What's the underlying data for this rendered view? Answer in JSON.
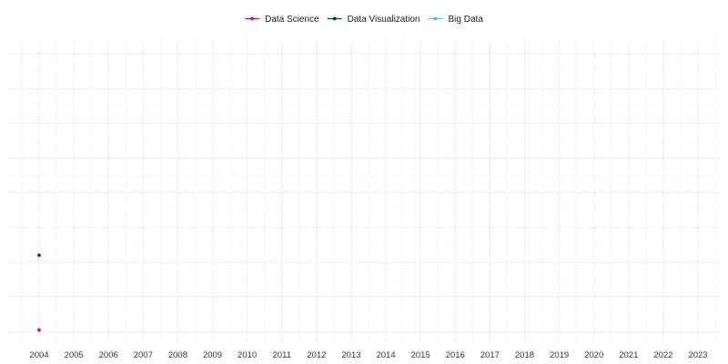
{
  "chart_data": {
    "type": "line",
    "title": "",
    "xlabel": "",
    "ylabel": "",
    "x": [
      "2004",
      "2005",
      "2006",
      "2007",
      "2008",
      "2009",
      "2010",
      "2011",
      "2012",
      "2013",
      "2014",
      "2015",
      "2016",
      "2017",
      "2018",
      "2019",
      "2020",
      "2021",
      "2022",
      "2023"
    ],
    "ylim": [
      0,
      8
    ],
    "grid": true,
    "legend_position": "top",
    "series": [
      {
        "name": "Data Science",
        "color": "#e6007e",
        "values": [
          0.05,
          null,
          null,
          null,
          null,
          null,
          null,
          null,
          null,
          null,
          null,
          null,
          null,
          null,
          null,
          null,
          null,
          null,
          null,
          null
        ]
      },
      {
        "name": "Data Visualization",
        "color": "#0b3954",
        "values": [
          2.2,
          null,
          null,
          null,
          null,
          null,
          null,
          null,
          null,
          null,
          null,
          null,
          null,
          null,
          null,
          null,
          null,
          null,
          null,
          null
        ]
      },
      {
        "name": "Big Data",
        "color": "#4fbfc7",
        "values": [
          null,
          null,
          null,
          null,
          null,
          null,
          null,
          null,
          null,
          null,
          null,
          null,
          null,
          null,
          null,
          null,
          null,
          null,
          null,
          null
        ]
      }
    ]
  }
}
